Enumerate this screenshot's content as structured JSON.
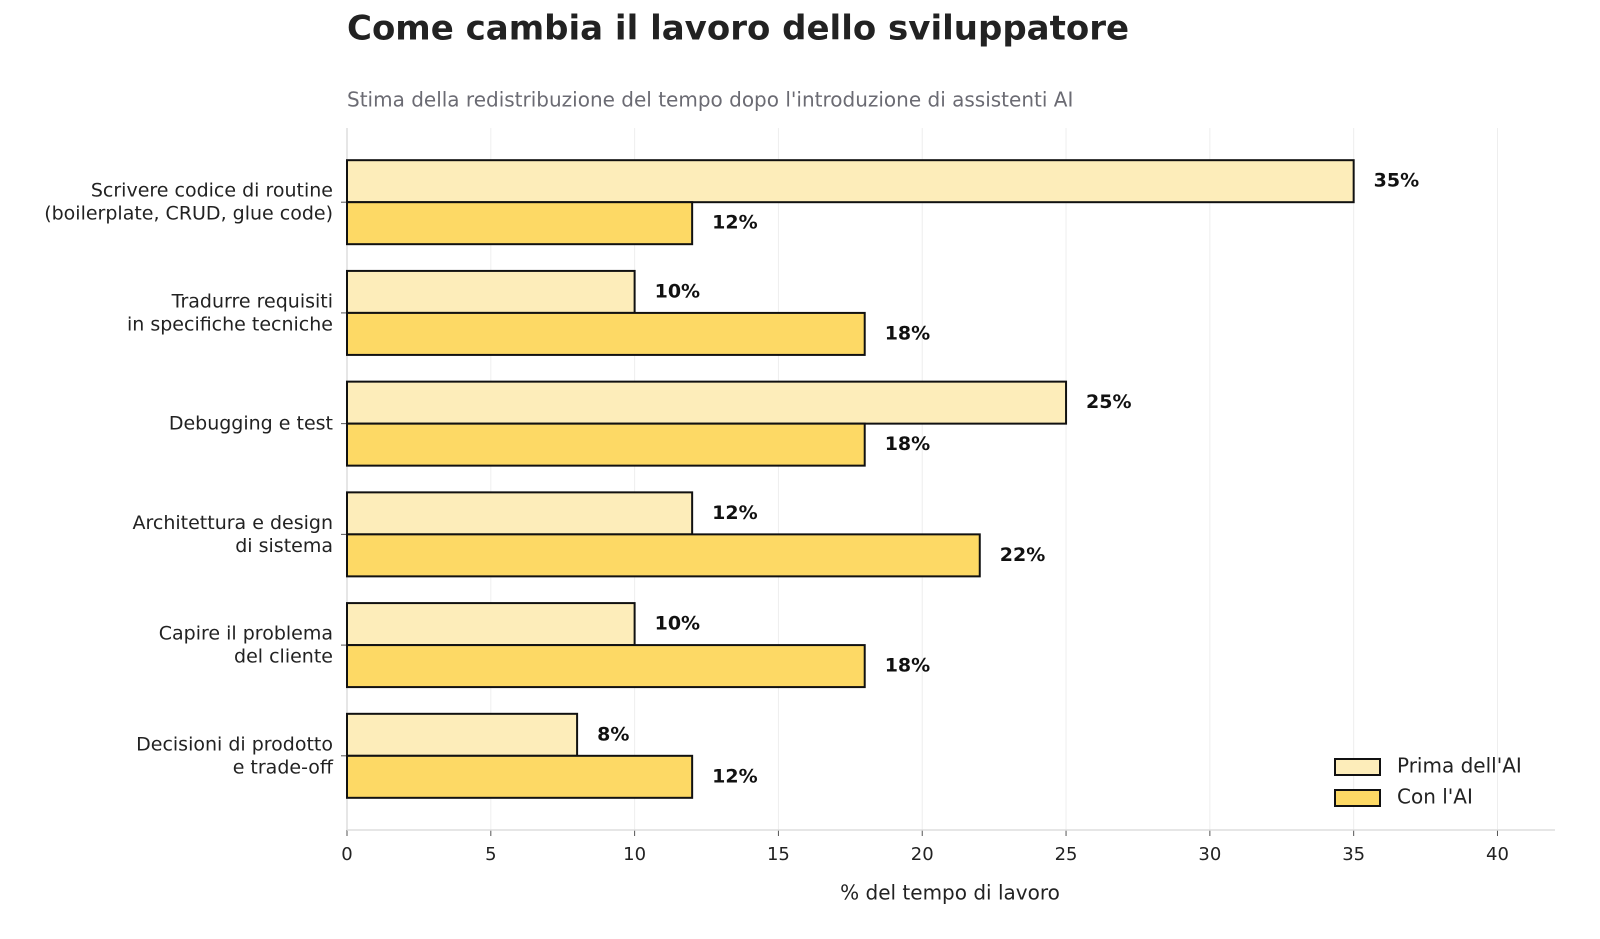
{
  "chart_data": {
    "type": "bar",
    "orientation": "horizontal",
    "title": "Come cambia il lavoro dello sviluppatore",
    "subtitle": "Stima della redistribuzione del tempo dopo l'introduzione di assistenti AI",
    "x_label": "% del tempo di lavoro",
    "categories": [
      [
        "Scrivere codice di routine",
        "(boilerplate, CRUD, glue code)"
      ],
      [
        "Tradurre requisiti",
        "in specifiche tecniche"
      ],
      [
        "Debugging e test"
      ],
      [
        "Architettura e design",
        "di sistema"
      ],
      [
        "Capire il problema",
        "del cliente"
      ],
      [
        "Decisioni di prodotto",
        "e trade-off"
      ]
    ],
    "series": [
      {
        "name": "Prima dell'AI",
        "color": "#fdedba",
        "values": [
          35,
          10,
          25,
          12,
          10,
          8
        ],
        "value_labels": [
          "35%",
          "10%",
          "25%",
          "12%",
          "10%",
          "8%"
        ]
      },
      {
        "name": "Con l'AI",
        "color": "#fdd965",
        "values": [
          12,
          18,
          18,
          22,
          18,
          12
        ],
        "value_labels": [
          "12%",
          "18%",
          "18%",
          "22%",
          "18%",
          "12%"
        ]
      }
    ],
    "xlim": [
      0,
      42
    ],
    "xticks": [
      0,
      5,
      10,
      15,
      20,
      25,
      30,
      35,
      40
    ],
    "grid": true,
    "legend": "lower right"
  }
}
